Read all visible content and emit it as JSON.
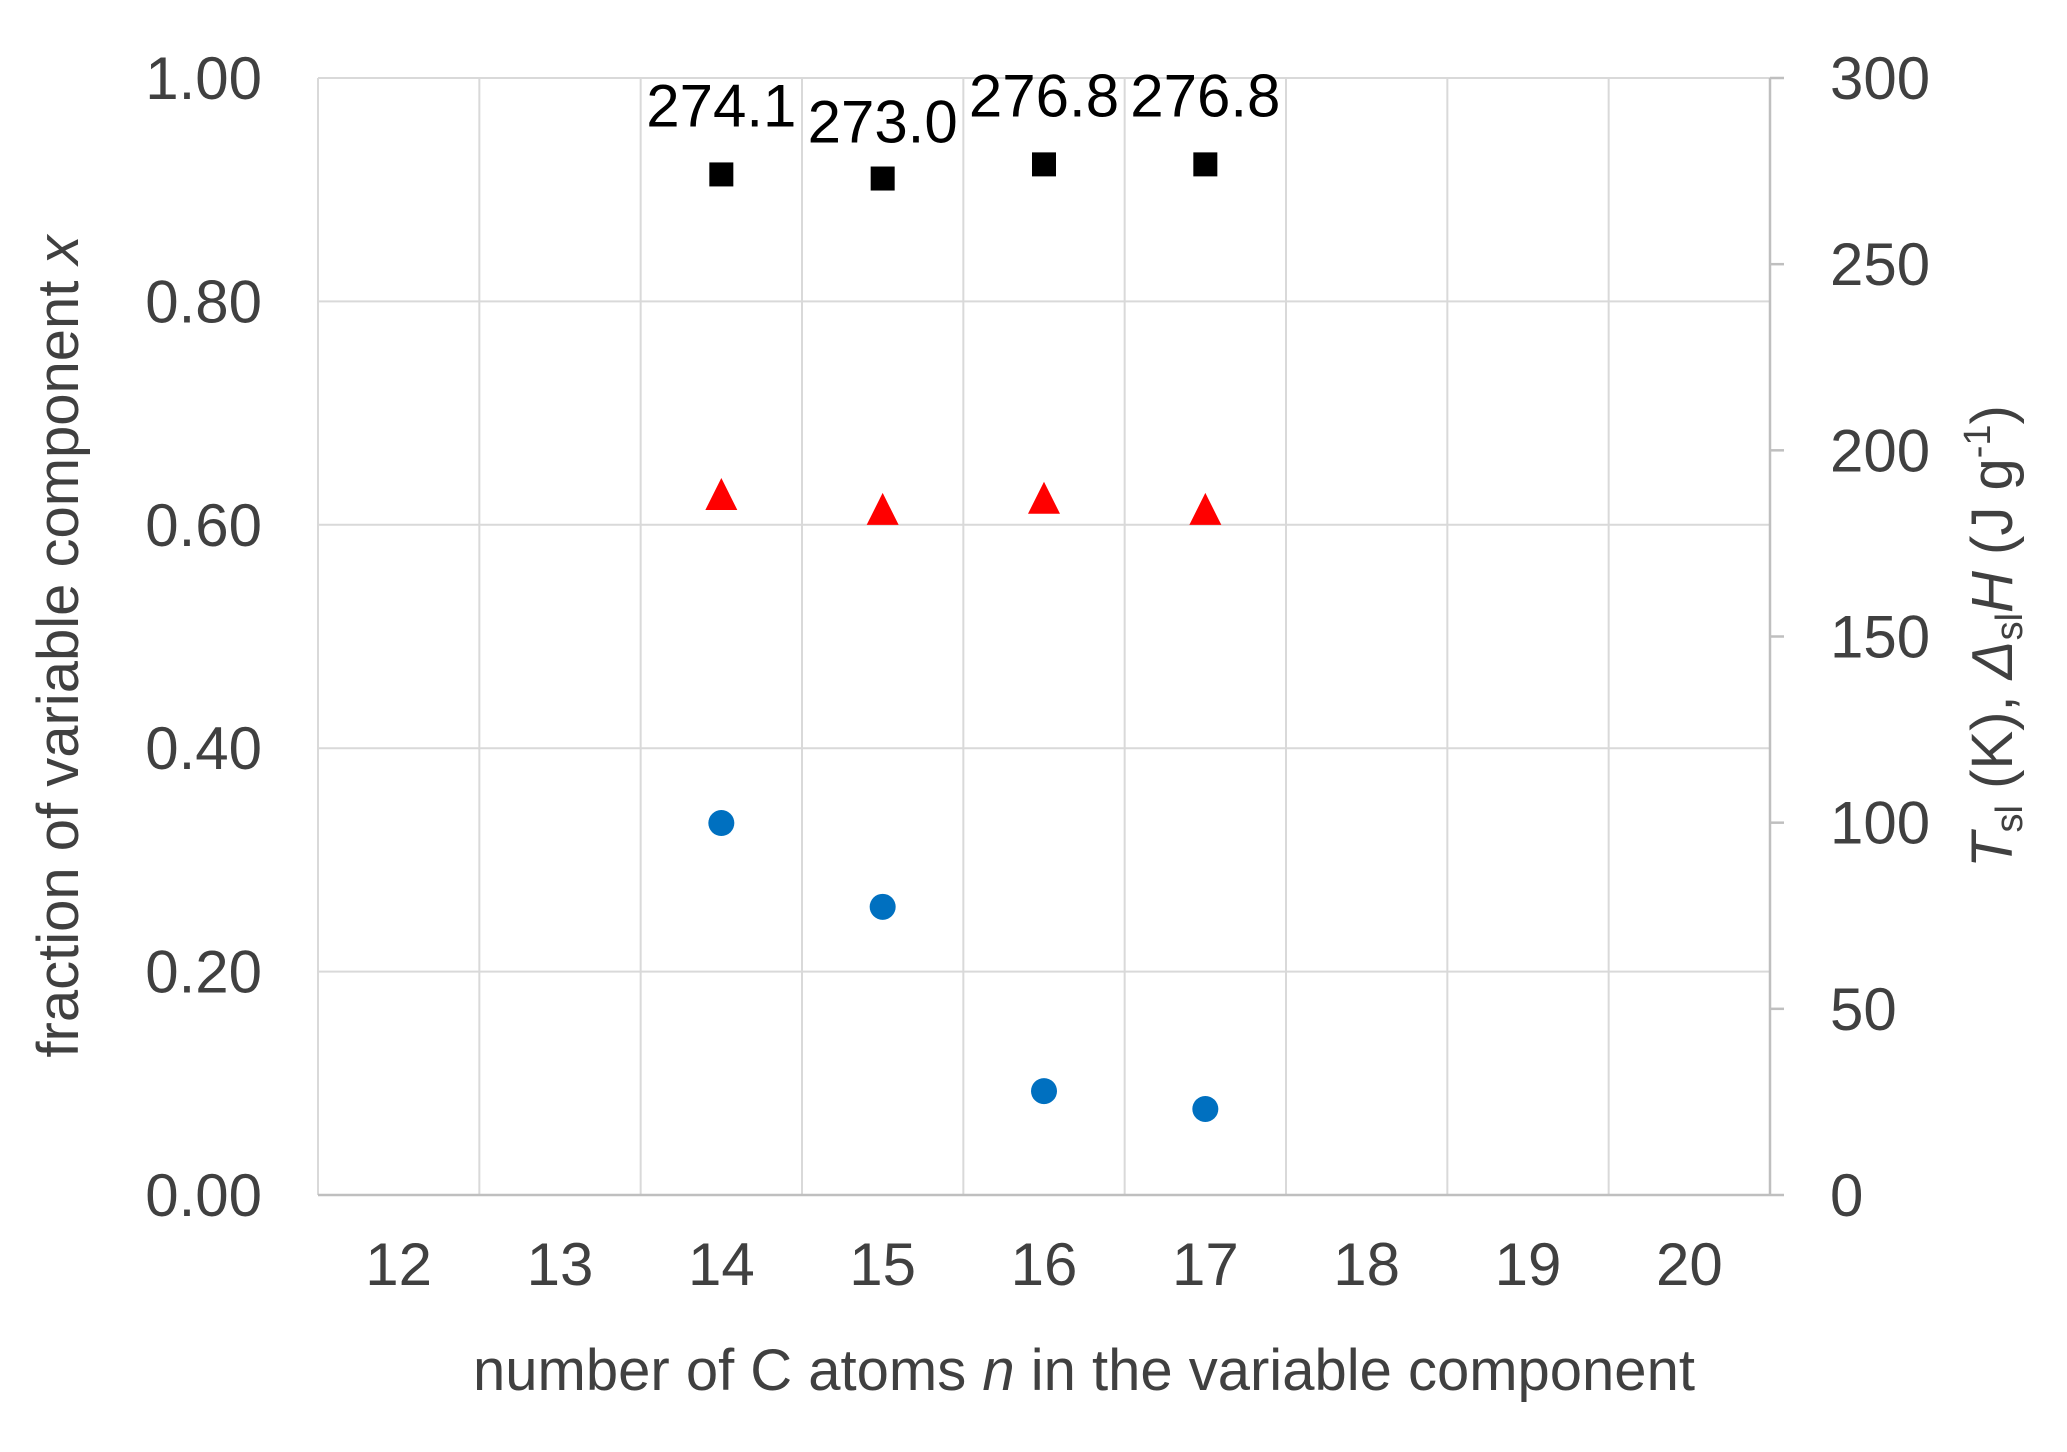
{
  "chart_data": {
    "type": "scatter",
    "title": "",
    "xlabel_parts": [
      {
        "text": "number of C atoms ",
        "italic": false
      },
      {
        "text": "n",
        "italic": true
      },
      {
        "text": " in the variable component",
        "italic": false
      }
    ],
    "ylabel_left_parts": [
      {
        "text": "fraction of variable component ",
        "italic": false
      },
      {
        "text": "x",
        "italic": true
      }
    ],
    "ylabel_right_parts": [
      {
        "text": "T",
        "italic": true,
        "sub": false,
        "sup": false
      },
      {
        "text": "sl",
        "italic": false,
        "sub": true,
        "sup": false
      },
      {
        "text": " (K), ",
        "italic": false,
        "sub": false,
        "sup": false
      },
      {
        "text": "Δ",
        "italic": true,
        "sub": false,
        "sup": false
      },
      {
        "text": "sl",
        "italic": false,
        "sub": true,
        "sup": false
      },
      {
        "text": "H",
        "italic": true,
        "sub": false,
        "sup": false
      },
      {
        "text": " (J g",
        "italic": false,
        "sub": false,
        "sup": false
      },
      {
        "text": "-1",
        "italic": false,
        "sub": false,
        "sup": true
      },
      {
        "text": ")",
        "italic": false,
        "sub": false,
        "sup": false
      }
    ],
    "x_categories": [
      "12",
      "13",
      "14",
      "15",
      "16",
      "17",
      "18",
      "19",
      "20"
    ],
    "xlim": [
      11.5,
      20.5
    ],
    "ylim_left": [
      0,
      1
    ],
    "ylim_right": [
      0,
      300
    ],
    "yticks_left": [
      "0.00",
      "0.20",
      "0.40",
      "0.60",
      "0.80",
      "1.00"
    ],
    "yticks_right": [
      "0",
      "50",
      "100",
      "150",
      "200",
      "250",
      "300"
    ],
    "grid": true,
    "legend": "none",
    "series": [
      {
        "marker": "square",
        "color": "#000000",
        "axis": "right",
        "x": [
          14,
          15,
          16,
          17
        ],
        "y": [
          274.1,
          273.0,
          276.8,
          276.8
        ],
        "labels": [
          "274.1",
          "273.0",
          "276.8",
          "276.8"
        ]
      },
      {
        "marker": "triangle",
        "color": "#ff0000",
        "axis": "right",
        "x": [
          14,
          15,
          16,
          17
        ],
        "y": [
          188,
          184,
          187,
          184
        ]
      },
      {
        "marker": "circle",
        "color": "#0070c0",
        "axis": "left",
        "x": [
          14,
          15,
          16,
          17
        ],
        "y": [
          0.333,
          0.258,
          0.093,
          0.077
        ]
      }
    ]
  }
}
